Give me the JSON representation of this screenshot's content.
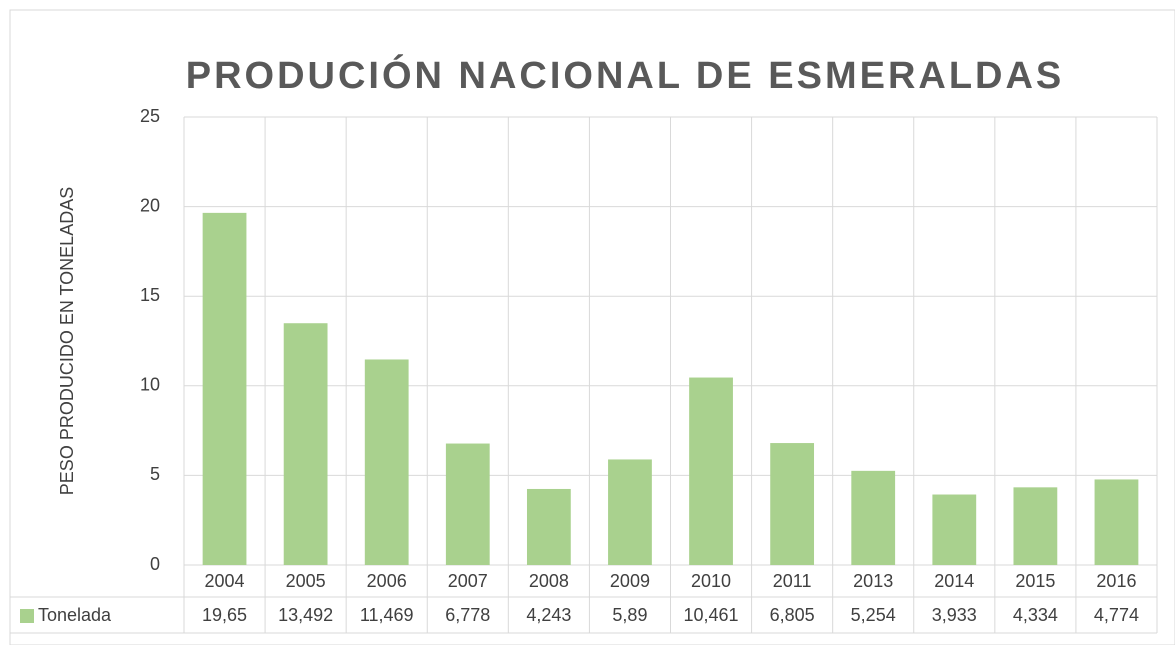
{
  "chart_data": {
    "type": "bar",
    "title": "PRODUCIÓN NACIONAL  DE ESMERALDAS",
    "y_label": "PESO PRODUCIDO  EN TONELADAS",
    "categories": [
      "2004",
      "2005",
      "2006",
      "2007",
      "2008",
      "2009",
      "2010",
      "2011",
      "2013",
      "2014",
      "2015",
      "2016"
    ],
    "series": [
      {
        "name": "Tonelada",
        "color": "#a9d18e",
        "values": [
          19.65,
          13.492,
          11.469,
          6.778,
          4.243,
          5.89,
          10.461,
          6.805,
          5.254,
          3.933,
          4.334,
          4.774
        ],
        "value_labels": [
          "19,65",
          "13,492",
          "11,469",
          "6,778",
          "4,243",
          "5,89",
          "10,461",
          "6,805",
          "5,254",
          "3,933",
          "4,334",
          "4,774"
        ]
      }
    ],
    "ylim": [
      0,
      25
    ],
    "yticks": [
      0,
      5,
      10,
      15,
      20,
      25
    ],
    "grid": true,
    "legend": "data-table"
  }
}
